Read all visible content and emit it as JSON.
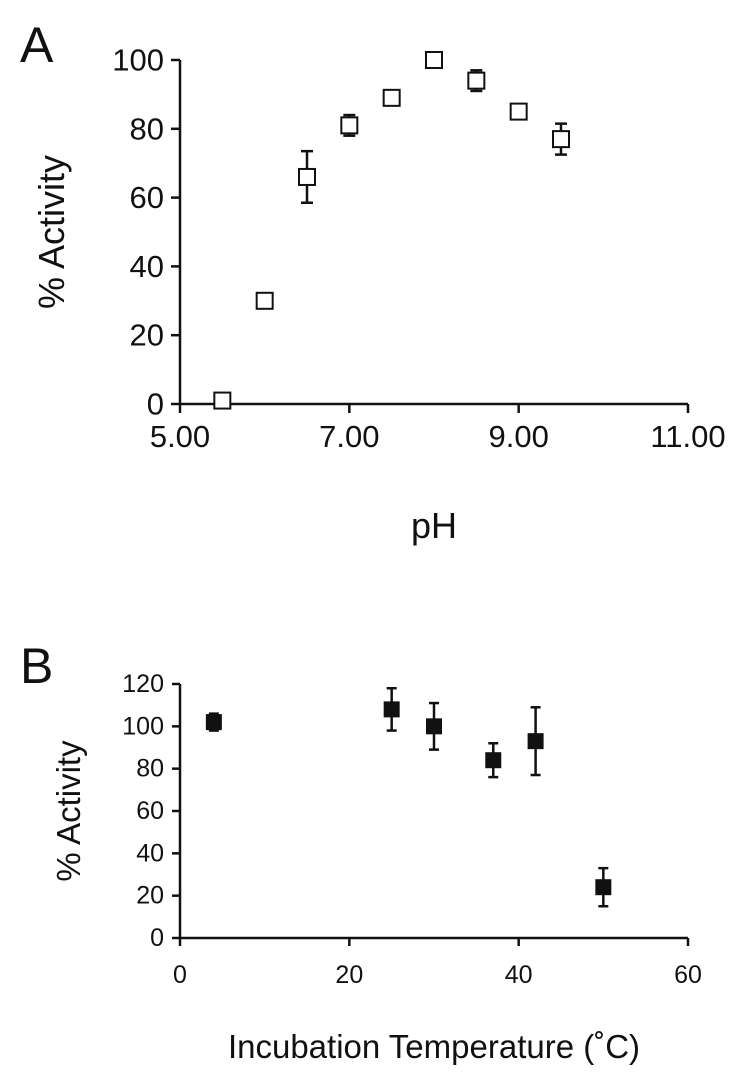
{
  "chart_data": [
    {
      "type": "scatter",
      "panel_label": "A",
      "xlabel": "pH",
      "ylabel": "% Activity",
      "xlim": [
        5,
        11
      ],
      "ylim": [
        0,
        100
      ],
      "x_ticks": [
        "5.00",
        "7.00",
        "9.00",
        "11.00"
      ],
      "y_ticks": [
        "0",
        "20",
        "40",
        "60",
        "80",
        "100"
      ],
      "marker": "open-square",
      "grid": false,
      "points": [
        {
          "x": 5.5,
          "y": 1,
          "err": 0
        },
        {
          "x": 6.0,
          "y": 30,
          "err": 0
        },
        {
          "x": 6.5,
          "y": 66,
          "err": 7.5
        },
        {
          "x": 7.0,
          "y": 81,
          "err": 3
        },
        {
          "x": 7.5,
          "y": 89,
          "err": 0
        },
        {
          "x": 8.0,
          "y": 100,
          "err": 0
        },
        {
          "x": 8.5,
          "y": 94,
          "err": 3
        },
        {
          "x": 9.0,
          "y": 85,
          "err": 1
        },
        {
          "x": 9.5,
          "y": 77,
          "err": 4.5
        }
      ]
    },
    {
      "type": "scatter",
      "panel_label": "B",
      "xlabel": "Incubation Temperature (˚C)",
      "ylabel": "% Activity",
      "xlim": [
        0,
        60
      ],
      "ylim": [
        0,
        120
      ],
      "x_ticks": [
        "0",
        "20",
        "40",
        "60"
      ],
      "y_ticks": [
        "0",
        "20",
        "40",
        "60",
        "80",
        "100",
        "120"
      ],
      "marker": "filled-square",
      "grid": false,
      "points": [
        {
          "x": 4,
          "y": 102,
          "err": 4
        },
        {
          "x": 25,
          "y": 108,
          "err": 10
        },
        {
          "x": 30,
          "y": 100,
          "err": 11
        },
        {
          "x": 37,
          "y": 84,
          "err": 8
        },
        {
          "x": 42,
          "y": 93,
          "err": 16
        },
        {
          "x": 50,
          "y": 24,
          "err": 9
        }
      ]
    }
  ]
}
